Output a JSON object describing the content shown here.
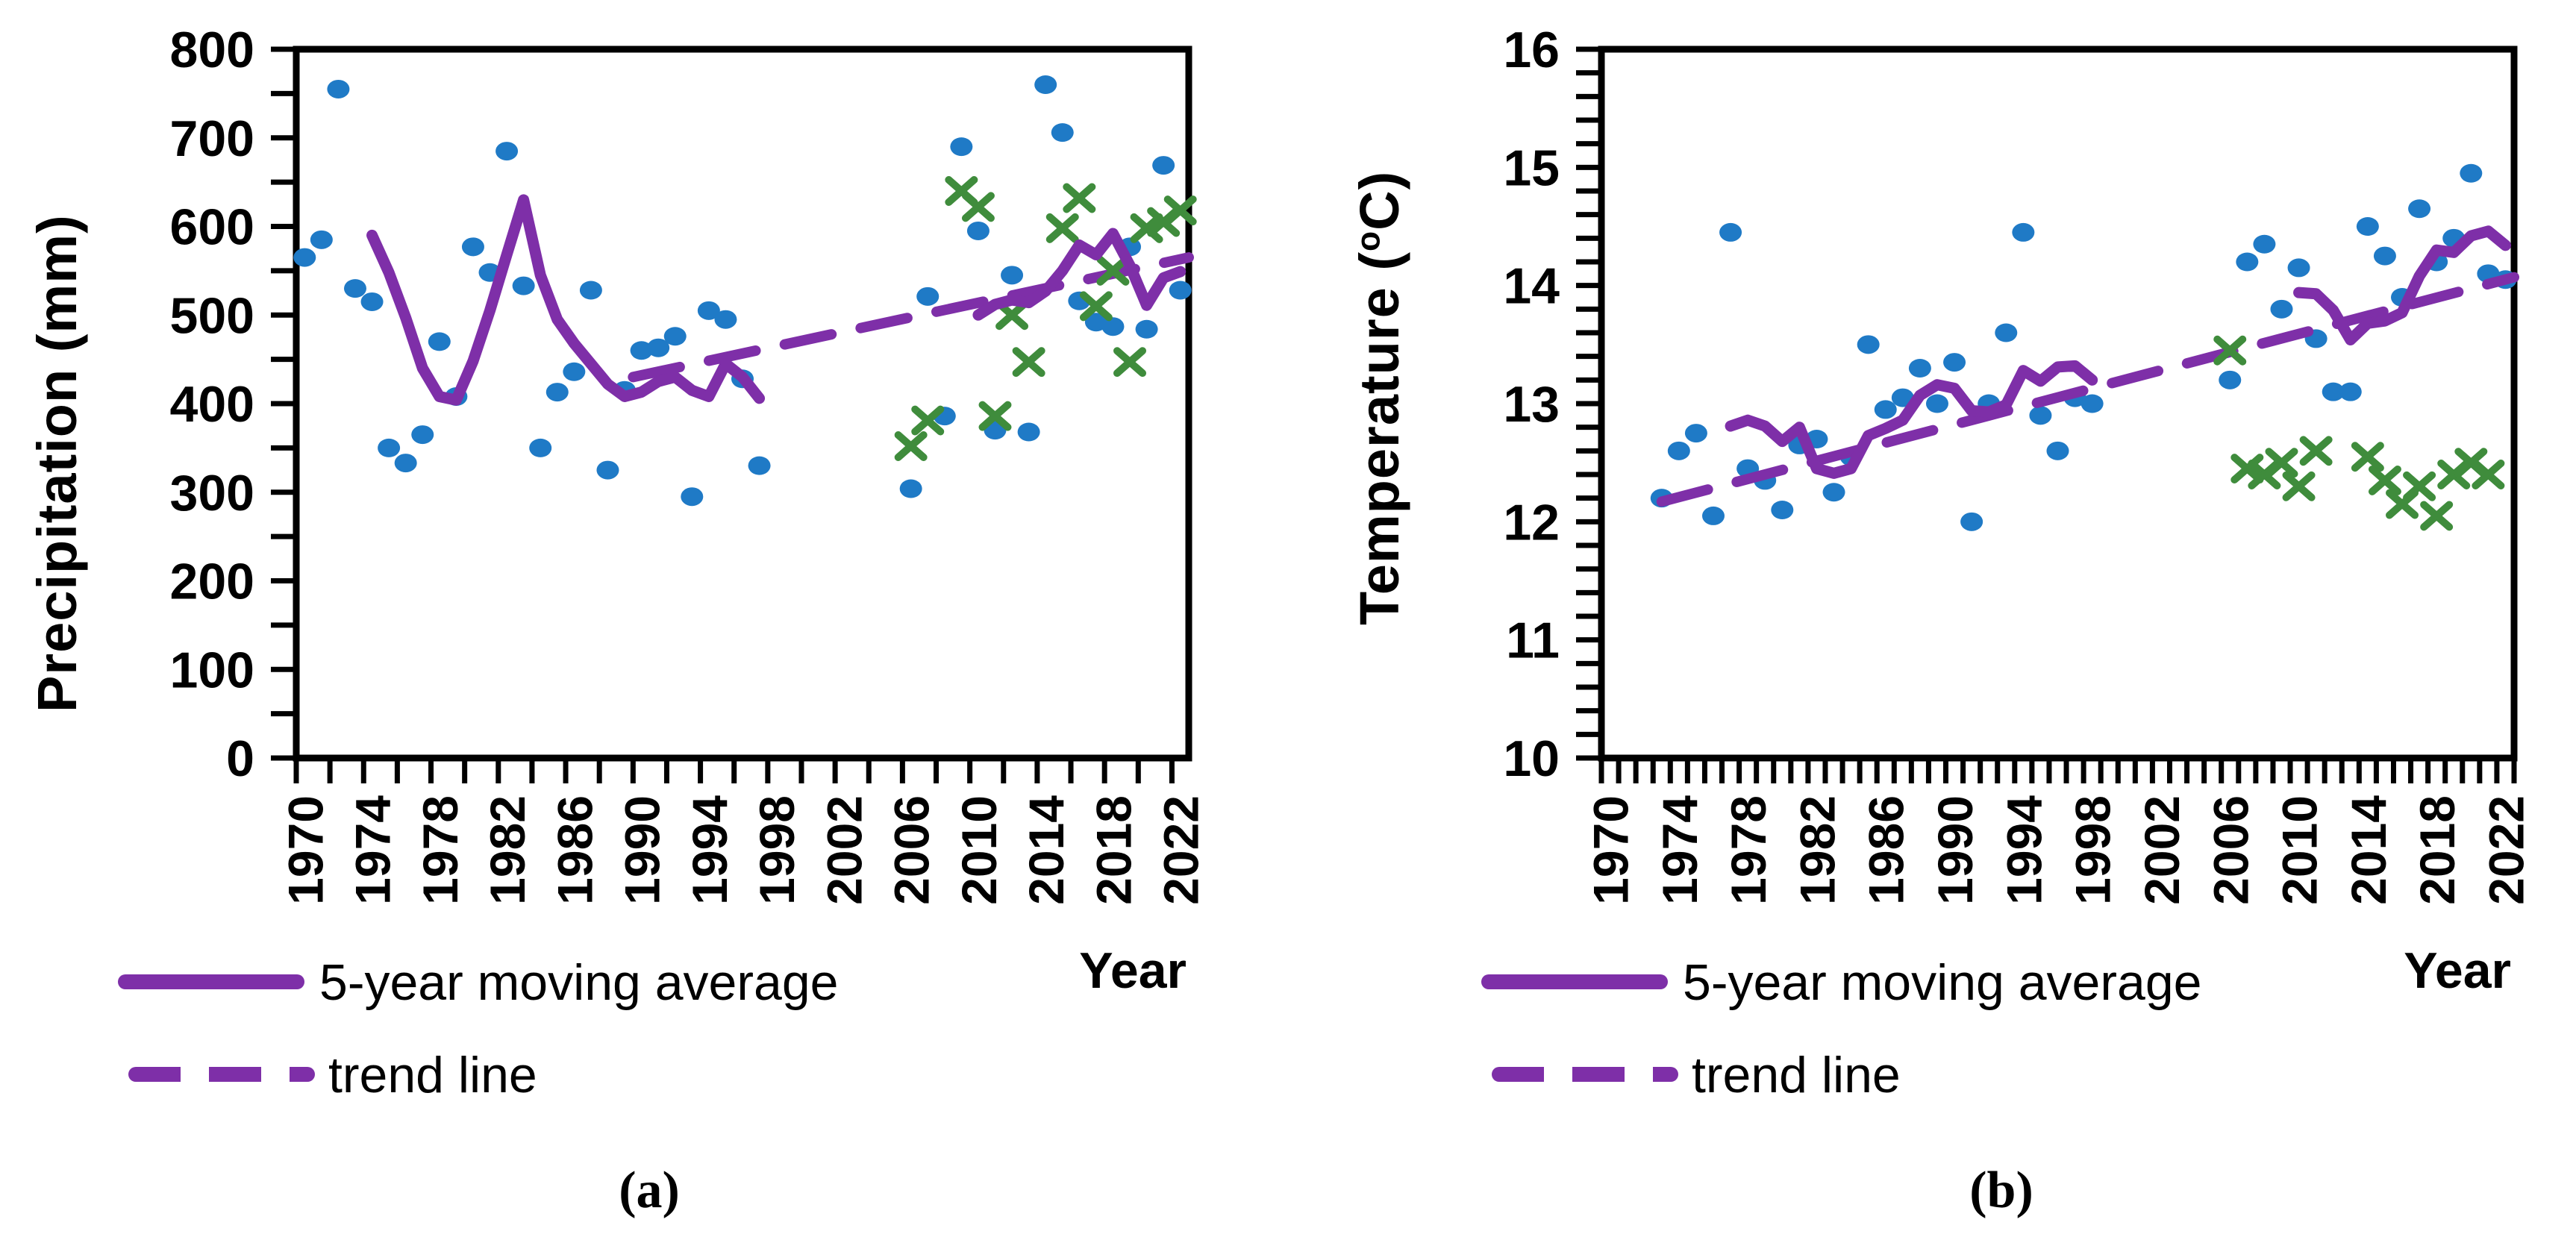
{
  "figure": {
    "background": "#ffffff",
    "colors": {
      "annual_points": "#1f7ac6",
      "secondary_points": "#3f8c3c",
      "purple_lines": "#7e2fa8",
      "axis": "#000000"
    },
    "captions": {
      "a": "(a)",
      "b": "(b)"
    },
    "legend": {
      "moving_average_label": "5-year moving average",
      "trend_label": "trend line"
    },
    "x_axis_title": "Year",
    "panel_a_y_title": "Precipitation (mm)",
    "panel_b_y_title_pre": "Temperature (",
    "panel_b_y_title_sup": "o",
    "panel_b_y_title_post": "C)"
  },
  "chart_data": [
    {
      "panel": "a",
      "type": "scatter",
      "ylabel": "Precipitation (mm)",
      "xlabel": "Year",
      "ylim": [
        0,
        800
      ],
      "xlim": [
        1969.5,
        2022.5
      ],
      "y_tick_labels": [
        0,
        100,
        200,
        300,
        400,
        500,
        600,
        700,
        800
      ],
      "y_minor_step": 50,
      "x_tick_labels": [
        1970,
        1974,
        1978,
        1982,
        1986,
        1990,
        1994,
        1998,
        2002,
        2006,
        2010,
        2014,
        2018,
        2022
      ],
      "x_tick_every_years": 2,
      "legend_position": "bottom-left",
      "grid": false,
      "series": [
        {
          "name": "annual-precipitation-points",
          "style": "circle",
          "points": [
            [
              1970,
              565
            ],
            [
              1971,
              585
            ],
            [
              1972,
              755
            ],
            [
              1973,
              530
            ],
            [
              1974,
              515
            ],
            [
              1975,
              350
            ],
            [
              1976,
              333
            ],
            [
              1977,
              365
            ],
            [
              1978,
              470
            ],
            [
              1979,
              408
            ],
            [
              1980,
              577
            ],
            [
              1981,
              548
            ],
            [
              1982,
              685
            ],
            [
              1983,
              533
            ],
            [
              1984,
              350
            ],
            [
              1985,
              413
            ],
            [
              1986,
              436
            ],
            [
              1987,
              528
            ],
            [
              1988,
              325
            ],
            [
              1989,
              415
            ],
            [
              1990,
              460
            ],
            [
              1991,
              463
            ],
            [
              1992,
              476
            ],
            [
              1993,
              295
            ],
            [
              1994,
              505
            ],
            [
              1995,
              495
            ],
            [
              1996,
              428
            ],
            [
              1997,
              330
            ],
            [
              2006,
              304
            ],
            [
              2007,
              521
            ],
            [
              2008,
              386
            ],
            [
              2009,
              690
            ],
            [
              2010,
              595
            ],
            [
              2011,
              370
            ],
            [
              2012,
              545
            ],
            [
              2013,
              368
            ],
            [
              2014,
              760
            ],
            [
              2015,
              706
            ],
            [
              2016,
              516
            ],
            [
              2017,
              492
            ],
            [
              2018,
              487
            ],
            [
              2019,
              577
            ],
            [
              2020,
              484
            ],
            [
              2021,
              669
            ],
            [
              2022,
              528
            ]
          ]
        },
        {
          "name": "secondary-precipitation-points",
          "style": "x",
          "points": [
            [
              2006,
              352
            ],
            [
              2007,
              381
            ],
            [
              2009,
              640
            ],
            [
              2010,
              622
            ],
            [
              2011,
              386
            ],
            [
              2012,
              500
            ],
            [
              2013,
              447
            ],
            [
              2015,
              598
            ],
            [
              2016,
              632
            ],
            [
              2017,
              510
            ],
            [
              2018,
              550
            ],
            [
              2019,
              447
            ],
            [
              2020,
              598
            ],
            [
              2021,
              605
            ],
            [
              2022,
              618
            ]
          ]
        },
        {
          "name": "5-year moving average",
          "style": "solid-line",
          "segments": [
            [
              [
                1974,
                590
              ],
              [
                1975,
                548
              ],
              [
                1976,
                497
              ],
              [
                1977,
                440
              ],
              [
                1978,
                408
              ],
              [
                1979,
                404
              ],
              [
                1980,
                448
              ],
              [
                1981,
                505
              ],
              [
                1982,
                568
              ],
              [
                1983,
                630
              ],
              [
                1984,
                545
              ],
              [
                1985,
                495
              ],
              [
                1986,
                468
              ],
              [
                1987,
                445
              ],
              [
                1988,
                422
              ],
              [
                1989,
                408
              ],
              [
                1990,
                413
              ],
              [
                1991,
                425
              ],
              [
                1992,
                430
              ],
              [
                1993,
                415
              ],
              [
                1994,
                408
              ],
              [
                1995,
                445
              ],
              [
                1996,
                430
              ],
              [
                1997,
                406
              ]
            ],
            [
              [
                2010,
                500
              ],
              [
                2011,
                512
              ],
              [
                2012,
                517
              ],
              [
                2013,
                514
              ],
              [
                2014,
                527
              ],
              [
                2015,
                550
              ],
              [
                2016,
                579
              ],
              [
                2017,
                568
              ],
              [
                2018,
                592
              ],
              [
                2019,
                556
              ],
              [
                2020,
                511
              ],
              [
                2021,
                542
              ],
              [
                2022,
                549
              ]
            ]
          ]
        },
        {
          "name": "trend line",
          "style": "dashed-line",
          "segments": [
            [
              [
                1989.5,
                430
              ],
              [
                2022.5,
                565
              ]
            ]
          ]
        }
      ]
    },
    {
      "panel": "b",
      "type": "scatter",
      "ylabel": "Temperature (oC)",
      "xlabel": "Year",
      "ylim": [
        10,
        16
      ],
      "xlim": [
        1969.5,
        2022.5
      ],
      "y_tick_labels": [
        10,
        11,
        12,
        13,
        14,
        15,
        16
      ],
      "y_minor_step": 0.2,
      "x_tick_labels": [
        1970,
        1974,
        1978,
        1982,
        1986,
        1990,
        1994,
        1998,
        2002,
        2006,
        2010,
        2014,
        2018,
        2022
      ],
      "x_tick_every_years": 1,
      "legend_position": "bottom-left",
      "grid": false,
      "series": [
        {
          "name": "annual-temperature-points",
          "style": "circle",
          "points": [
            [
              1973,
              12.2
            ],
            [
              1974,
              12.6
            ],
            [
              1975,
              12.75
            ],
            [
              1976,
              12.05
            ],
            [
              1977,
              14.45
            ],
            [
              1978,
              12.45
            ],
            [
              1979,
              12.35
            ],
            [
              1980,
              12.1
            ],
            [
              1981,
              12.65
            ],
            [
              1982,
              12.7
            ],
            [
              1983,
              12.25
            ],
            [
              1984,
              12.55
            ],
            [
              1985,
              13.5
            ],
            [
              1986,
              12.95
            ],
            [
              1987,
              13.05
            ],
            [
              1988,
              13.3
            ],
            [
              1989,
              13.0
            ],
            [
              1990,
              13.35
            ],
            [
              1991,
              12.0
            ],
            [
              1992,
              13.0
            ],
            [
              1993,
              13.6
            ],
            [
              1994,
              14.45
            ],
            [
              1995,
              12.9
            ],
            [
              1996,
              12.6
            ],
            [
              1997,
              13.05
            ],
            [
              1998,
              13.0
            ],
            [
              2006,
              13.2
            ],
            [
              2007,
              14.2
            ],
            [
              2008,
              14.35
            ],
            [
              2009,
              13.8
            ],
            [
              2010,
              14.15
            ],
            [
              2011,
              13.55
            ],
            [
              2012,
              13.1
            ],
            [
              2013,
              13.1
            ],
            [
              2014,
              14.5
            ],
            [
              2015,
              14.25
            ],
            [
              2016,
              13.9
            ],
            [
              2017,
              14.65
            ],
            [
              2018,
              14.2
            ],
            [
              2019,
              14.4
            ],
            [
              2020,
              14.95
            ],
            [
              2021,
              14.1
            ],
            [
              2022,
              14.05
            ]
          ]
        },
        {
          "name": "secondary-temperature-points",
          "style": "x",
          "points": [
            [
              2006,
              13.45
            ],
            [
              2007,
              12.45
            ],
            [
              2008,
              12.4
            ],
            [
              2009,
              12.5
            ],
            [
              2010,
              12.3
            ],
            [
              2011,
              12.6
            ],
            [
              2014,
              12.55
            ],
            [
              2015,
              12.35
            ],
            [
              2016,
              12.15
            ],
            [
              2017,
              12.3
            ],
            [
              2018,
              12.05
            ],
            [
              2019,
              12.4
            ],
            [
              2020,
              12.5
            ],
            [
              2021,
              12.4
            ]
          ]
        },
        {
          "name": "5-year moving average",
          "style": "solid-line",
          "segments": [
            [
              [
                1977,
                12.81
              ],
              [
                1978,
                12.86
              ],
              [
                1979,
                12.81
              ],
              [
                1980,
                12.68
              ],
              [
                1981,
                12.8
              ],
              [
                1982,
                12.45
              ],
              [
                1983,
                12.41
              ],
              [
                1984,
                12.45
              ],
              [
                1985,
                12.73
              ],
              [
                1986,
                12.79
              ],
              [
                1987,
                12.86
              ],
              [
                1988,
                13.07
              ],
              [
                1989,
                13.16
              ],
              [
                1990,
                13.13
              ],
              [
                1991,
                12.94
              ],
              [
                1992,
                12.93
              ],
              [
                1993,
                12.99
              ],
              [
                1994,
                13.28
              ],
              [
                1995,
                13.19
              ],
              [
                1996,
                13.31
              ],
              [
                1997,
                13.32
              ],
              [
                1998,
                13.2
              ]
            ],
            [
              [
                2010,
                13.94
              ],
              [
                2011,
                13.93
              ],
              [
                2012,
                13.79
              ],
              [
                2013,
                13.54
              ],
              [
                2014,
                13.68
              ],
              [
                2015,
                13.7
              ],
              [
                2016,
                13.77
              ],
              [
                2017,
                14.08
              ],
              [
                2018,
                14.3
              ],
              [
                2019,
                14.28
              ],
              [
                2020,
                14.42
              ],
              [
                2021,
                14.46
              ],
              [
                2022,
                14.34
              ]
            ]
          ]
        },
        {
          "name": "trend line",
          "style": "dashed-line",
          "segments": [
            [
              [
                1973,
                12.17
              ],
              [
                2022.5,
                14.07
              ]
            ]
          ]
        }
      ]
    }
  ]
}
